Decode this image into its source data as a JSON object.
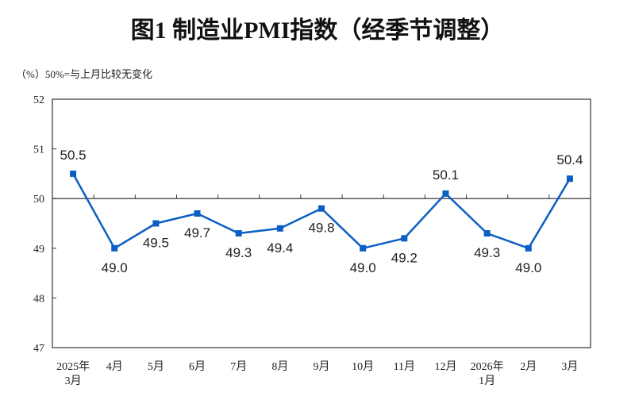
{
  "chart_data": {
    "type": "line",
    "title": "图1  制造业PMI指数（经季节调整）",
    "note": "（%）50%=与上月比较无变化",
    "categories": [
      [
        "2025年",
        "3月"
      ],
      [
        "4月"
      ],
      [
        "5月"
      ],
      [
        "6月"
      ],
      [
        "7月"
      ],
      [
        "8月"
      ],
      [
        "9月"
      ],
      [
        "10月"
      ],
      [
        "11月"
      ],
      [
        "12月"
      ],
      [
        "2026年",
        "1月"
      ],
      [
        "2月"
      ],
      [
        "3月"
      ]
    ],
    "values": [
      50.5,
      49.0,
      49.5,
      49.7,
      49.3,
      49.4,
      49.8,
      49.0,
      49.2,
      50.1,
      49.3,
      49.0,
      50.4
    ],
    "data_labels": [
      "50.5",
      "49.0",
      "49.5",
      "49.7",
      "49.3",
      "49.4",
      "49.8",
      "49.0",
      "49.2",
      "50.1",
      "49.3",
      "49.0",
      "50.4"
    ],
    "ylim": [
      47,
      52
    ],
    "yticks": [
      "47",
      "48",
      "49",
      "50",
      "51",
      "52"
    ],
    "reference_line": 50,
    "grid": false,
    "legend": "none",
    "line_color": "#0b5fc4",
    "marker": "square"
  }
}
